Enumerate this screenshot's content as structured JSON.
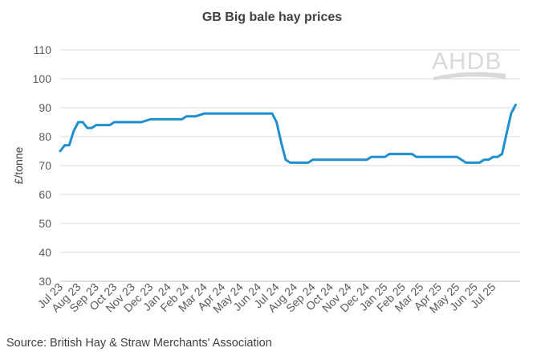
{
  "chart_data": {
    "type": "line",
    "title": "GB Big bale hay prices",
    "ylabel": "£/tonne",
    "xlabel": "",
    "ylim": [
      30,
      110
    ],
    "yticks": [
      "30",
      "40",
      "50",
      "60",
      "70",
      "80",
      "90",
      "100",
      "110"
    ],
    "categories": [
      "Jul 23",
      "Aug 23",
      "Sep 23",
      "Oct 23",
      "Nov 23",
      "Dec 23",
      "Jan 24",
      "Feb 24",
      "Mar 24",
      "Apr 24",
      "May 24",
      "Jun 24",
      "Jul 24",
      "Aug 24",
      "Sep 24",
      "Oct 24",
      "Nov 24",
      "Dec 24",
      "Jan 25",
      "Feb 25",
      "Mar 25",
      "Apr 25",
      "May 25",
      "Jun 25",
      "Jul 25"
    ],
    "grid": true,
    "legend": "none",
    "series": [
      {
        "color": "#1f8fcf",
        "points": [
          [
            0.0,
            75
          ],
          [
            0.25,
            77
          ],
          [
            0.5,
            77
          ],
          [
            0.75,
            82
          ],
          [
            1.0,
            85
          ],
          [
            1.25,
            85
          ],
          [
            1.5,
            83
          ],
          [
            1.75,
            83
          ],
          [
            2.0,
            84
          ],
          [
            2.5,
            84
          ],
          [
            2.75,
            84
          ],
          [
            3.0,
            85
          ],
          [
            3.5,
            85
          ],
          [
            4.0,
            85
          ],
          [
            4.5,
            85
          ],
          [
            5.0,
            86
          ],
          [
            5.5,
            86
          ],
          [
            6.0,
            86
          ],
          [
            6.5,
            86
          ],
          [
            6.75,
            86
          ],
          [
            7.0,
            87
          ],
          [
            7.5,
            87
          ],
          [
            8.0,
            88
          ],
          [
            8.5,
            88
          ],
          [
            9.0,
            88
          ],
          [
            9.5,
            88
          ],
          [
            10.0,
            88
          ],
          [
            10.5,
            88
          ],
          [
            11.0,
            88
          ],
          [
            11.5,
            88
          ],
          [
            11.75,
            88
          ],
          [
            12.0,
            85
          ],
          [
            12.25,
            78
          ],
          [
            12.5,
            72
          ],
          [
            12.75,
            71
          ],
          [
            13.0,
            71
          ],
          [
            13.5,
            71
          ],
          [
            13.75,
            71
          ],
          [
            14.0,
            72
          ],
          [
            14.5,
            72
          ],
          [
            15.0,
            72
          ],
          [
            15.5,
            72
          ],
          [
            16.0,
            72
          ],
          [
            16.5,
            72
          ],
          [
            17.0,
            72
          ],
          [
            17.25,
            73
          ],
          [
            17.5,
            73
          ],
          [
            18.0,
            73
          ],
          [
            18.25,
            74
          ],
          [
            18.5,
            74
          ],
          [
            19.0,
            74
          ],
          [
            19.5,
            74
          ],
          [
            19.75,
            73
          ],
          [
            20.0,
            73
          ],
          [
            20.5,
            73
          ],
          [
            21.0,
            73
          ],
          [
            21.5,
            73
          ],
          [
            22.0,
            73
          ],
          [
            22.5,
            71
          ],
          [
            23.0,
            71
          ],
          [
            23.25,
            71
          ],
          [
            23.5,
            72
          ],
          [
            23.75,
            72
          ],
          [
            24.0,
            73
          ],
          [
            24.25,
            73
          ],
          [
            24.5,
            74
          ],
          [
            24.75,
            81
          ],
          [
            25.0,
            88
          ],
          [
            25.25,
            91
          ]
        ]
      }
    ]
  },
  "source": "Source: British Hay & Straw Merchants' Association",
  "logo": "AHDB",
  "colors": {
    "line": "#1f8fcf",
    "grid": "#d9d9d9",
    "logo": "#d9d9d9"
  }
}
